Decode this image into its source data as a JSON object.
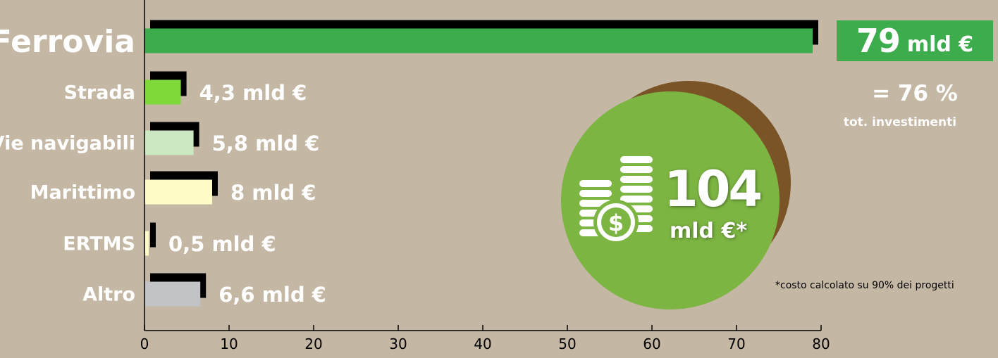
{
  "chart_data": {
    "type": "bar",
    "orientation": "horizontal",
    "categories": [
      "Ferrovia",
      "Strada",
      "Vie navigabili",
      "Marittimo",
      "ERTMS",
      "Altro"
    ],
    "values": [
      79,
      4.3,
      5.8,
      8,
      0.5,
      6.6
    ],
    "value_labels": [
      "",
      "4,3 mld €",
      "5,8 mld €",
      "8 mld €",
      "0,5 mld €",
      "6,6 mld €"
    ],
    "colors": [
      "#3dac4c",
      "#7fd93a",
      "#cbe8c2",
      "#fffcc8",
      "#fffcc8",
      "#c2c3c6"
    ],
    "shadow_color": "#000000",
    "xlim": [
      0,
      80
    ],
    "xticks": [
      "0",
      "10",
      "20",
      "30",
      "40",
      "50",
      "60",
      "70",
      "80"
    ],
    "grid": false,
    "legend": "none"
  },
  "highlight": {
    "value": "79",
    "unit": "mld €",
    "percent": "= 76 %",
    "percent_caption": "tot. investimenti",
    "color": "#3dac4c"
  },
  "total": {
    "value": "104",
    "unit": "mld €*",
    "icon": "coins-dollar-icon",
    "color": "#7cb542",
    "shadow_color": "#7a5426"
  },
  "footnote": "*costo calcolato su 90% dei progetti"
}
